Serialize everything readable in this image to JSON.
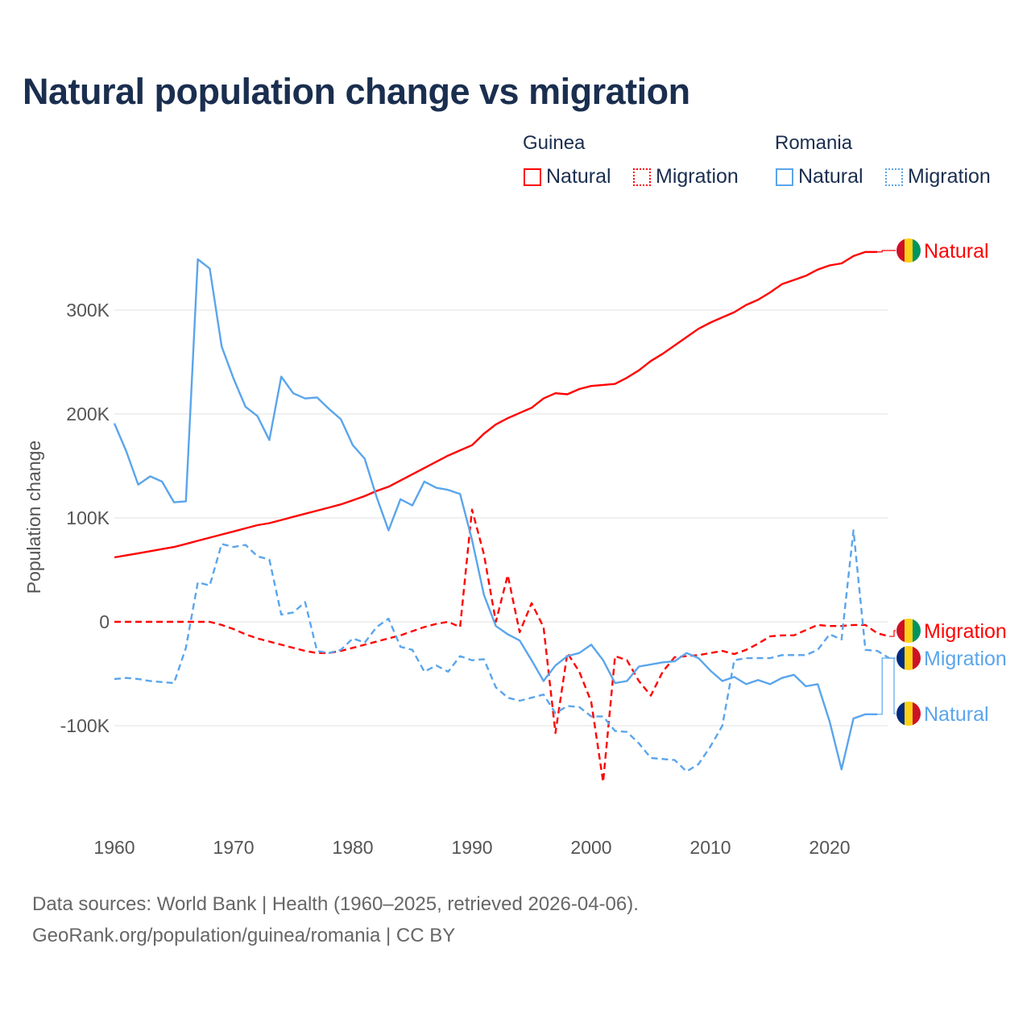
{
  "title": "Natural population change vs migration",
  "legend": {
    "groups": [
      {
        "name": "Guinea",
        "items": [
          "Natural",
          "Migration"
        ],
        "color": "#ff0000"
      },
      {
        "name": "Romania",
        "items": [
          "Natural",
          "Migration"
        ],
        "color": "#5aa5ec"
      }
    ]
  },
  "footer": {
    "line1": "Data sources: World Bank | Health (1960–2025, retrieved 2026-04-06).",
    "line2": "GeoRank.org/population/guinea/romania | CC BY"
  },
  "chart_data": {
    "type": "line",
    "title": "Natural population change vs migration",
    "xlabel": "",
    "ylabel": "Population change",
    "xlim": [
      1960,
      2025
    ],
    "ylim": [
      -180000,
      360000
    ],
    "x_ticks": [
      1960,
      1970,
      1980,
      1990,
      2000,
      2010,
      2020
    ],
    "x_tick_labels": [
      "1960",
      "1970",
      "1980",
      "1990",
      "2000",
      "2010",
      "2020"
    ],
    "y_ticks": [
      -100000,
      0,
      100000,
      200000,
      300000
    ],
    "y_tick_labels": [
      "-100K",
      "0",
      "100K",
      "200K",
      "300K"
    ],
    "grid": true,
    "legend_position": "top-right",
    "series": [
      {
        "name": "Guinea Natural",
        "country": "Guinea",
        "kind": "Natural",
        "color": "#ff0000",
        "dash": false,
        "start": 1960,
        "values": [
          62,
          64,
          66,
          68,
          70,
          72,
          75,
          78,
          81,
          84,
          87,
          90,
          93,
          95,
          98,
          101,
          104,
          107,
          110,
          113,
          117,
          121,
          126,
          130,
          136,
          142,
          148,
          154,
          160,
          165,
          170,
          181,
          190,
          196,
          201,
          206,
          215,
          220,
          219,
          224,
          227,
          228,
          229,
          235,
          242,
          251,
          258,
          266,
          274,
          282,
          288,
          293,
          298,
          305,
          310,
          317,
          325,
          329,
          333,
          339,
          343,
          345,
          352,
          356,
          356
        ]
      },
      {
        "name": "Guinea Migration",
        "country": "Guinea",
        "kind": "Migration",
        "color": "#ff0000",
        "dash": true,
        "start": 1960,
        "values": [
          0,
          0,
          0,
          0,
          0,
          0,
          0,
          0,
          0,
          -3,
          -7,
          -12,
          -16,
          -19,
          -22,
          -25,
          -28,
          -30,
          -30,
          -28,
          -25,
          -22,
          -19,
          -16,
          -13,
          -9,
          -5,
          -2,
          0,
          -5,
          108,
          65,
          0,
          45,
          -10,
          18,
          -5,
          -107,
          -30,
          -48,
          -77,
          -154,
          -33,
          -37,
          -57,
          -71,
          -48,
          -34,
          -33,
          -32,
          -30,
          -28,
          -31,
          -27,
          -21,
          -14,
          -13,
          -13,
          -8,
          -3,
          -4,
          -4,
          -3,
          -3,
          -11,
          -14
        ]
      },
      {
        "name": "Romania Natural",
        "country": "Romania",
        "kind": "Natural",
        "color": "#5aa5ec",
        "dash": false,
        "start": 1960,
        "values": [
          191,
          164,
          132,
          140,
          135,
          115,
          116,
          349,
          340,
          265,
          234,
          207,
          198,
          175,
          236,
          220,
          215,
          216,
          205,
          195,
          170,
          157,
          120,
          88,
          118,
          112,
          135,
          129,
          127,
          123,
          79,
          26,
          -4,
          -12,
          -18,
          -37,
          -57,
          -42,
          -33,
          -30,
          -22,
          -37,
          -59,
          -57,
          -43,
          -41,
          -39,
          -38,
          -30,
          -35,
          -47,
          -57,
          -53,
          -60,
          -56,
          -60,
          -54,
          -51,
          -62,
          -60,
          -96,
          -142,
          -93,
          -89,
          -89
        ]
      },
      {
        "name": "Romania Migration",
        "country": "Romania",
        "kind": "Migration",
        "color": "#5aa5ec",
        "dash": true,
        "start": 1960,
        "values": [
          -55,
          -54,
          -55,
          -57,
          -58,
          -59,
          -25,
          38,
          35,
          75,
          72,
          74,
          63,
          60,
          7,
          9,
          19,
          -28,
          -30,
          -27,
          -16,
          -20,
          -5,
          3,
          -24,
          -27,
          -48,
          -42,
          -48,
          -33,
          -37,
          -36,
          -63,
          -73,
          -76,
          -73,
          -70,
          -88,
          -81,
          -82,
          -91,
          -91,
          -105,
          -106,
          -117,
          -131,
          -132,
          -133,
          -144,
          -137,
          -120,
          -100,
          -37,
          -35,
          -35,
          -35,
          -32,
          -32,
          -32,
          -27,
          -12,
          -17,
          88,
          -27,
          -28,
          -35
        ]
      }
    ],
    "values_unit": "thousands",
    "end_labels": [
      "Natural",
      "Migration",
      "Migration",
      "Natural"
    ]
  }
}
